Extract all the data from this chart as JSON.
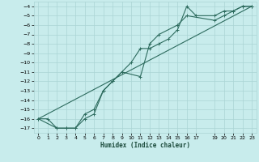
{
  "xlabel": "Humidex (Indice chaleur)",
  "bg_color": "#c8ecec",
  "grid_color": "#aad4d4",
  "line_color": "#2d6b5e",
  "xlim": [
    -0.5,
    23.5
  ],
  "ylim": [
    -17.5,
    -3.5
  ],
  "xticks": [
    0,
    1,
    2,
    3,
    4,
    5,
    6,
    7,
    8,
    9,
    10,
    11,
    12,
    13,
    14,
    15,
    16,
    17,
    19,
    20,
    21,
    22,
    23
  ],
  "yticks": [
    -4,
    -5,
    -6,
    -7,
    -8,
    -9,
    -10,
    -11,
    -12,
    -13,
    -14,
    -15,
    -16,
    -17
  ],
  "line1_x": [
    0,
    1,
    2,
    3,
    4,
    5,
    6,
    7,
    8,
    9,
    10,
    11,
    12,
    13,
    14,
    15,
    16,
    17,
    19,
    20,
    21,
    22,
    23
  ],
  "line1_y": [
    -16,
    -16,
    -17,
    -17,
    -17,
    -15.5,
    -15,
    -13,
    -12,
    -11,
    -10,
    -8.5,
    -8.5,
    -8,
    -7.5,
    -6.5,
    -4,
    -5,
    -5,
    -4.5,
    -4.5,
    -4,
    -4
  ],
  "line2_x": [
    0,
    2,
    3,
    4,
    5,
    6,
    7,
    8,
    9,
    11,
    12,
    13,
    15,
    16,
    19,
    20,
    21,
    22,
    23
  ],
  "line2_y": [
    -16,
    -17,
    -17,
    -17,
    -16,
    -15.5,
    -13,
    -12,
    -11,
    -11.5,
    -8,
    -7,
    -6,
    -5,
    -5.5,
    -5,
    -4.5,
    -4,
    -4
  ],
  "line3_x": [
    0,
    23
  ],
  "line3_y": [
    -16,
    -4
  ],
  "marker_size": 2.5,
  "line_width": 0.8
}
